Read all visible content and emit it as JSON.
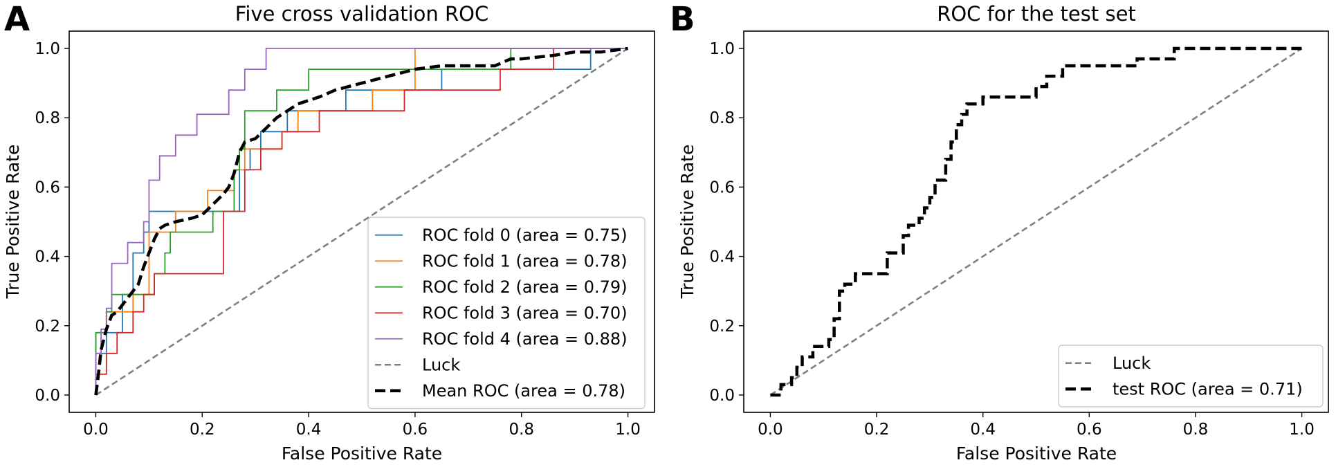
{
  "figure": {
    "panels": [
      {
        "letter": "A"
      },
      {
        "letter": "B"
      }
    ]
  },
  "chart_data": [
    {
      "type": "line",
      "title": "Five cross validation ROC",
      "xlabel": "False Positive Rate",
      "ylabel": "True Positive Rate",
      "xlim": [
        -0.05,
        1.05
      ],
      "ylim": [
        -0.05,
        1.05
      ],
      "xticks": [
        "0.0",
        "0.2",
        "0.4",
        "0.6",
        "0.8",
        "1.0"
      ],
      "yticks": [
        "0.0",
        "0.2",
        "0.4",
        "0.6",
        "0.8",
        "1.0"
      ],
      "grid": false,
      "legend_position": "lower-right",
      "series": [
        {
          "name": "ROC fold 0 (area = 0.75)",
          "color": "#1f77b4",
          "style": "step",
          "x": [
            0,
            0,
            0.02,
            0.02,
            0.05,
            0.05,
            0.07,
            0.07,
            0.09,
            0.09,
            0.1,
            0.1,
            0.27,
            0.27,
            0.29,
            0.29,
            0.31,
            0.31,
            0.36,
            0.36,
            0.47,
            0.47,
            0.65,
            0.65,
            0.93,
            0.93,
            1.0
          ],
          "y": [
            0,
            0.12,
            0.12,
            0.18,
            0.18,
            0.29,
            0.29,
            0.41,
            0.41,
            0.47,
            0.47,
            0.53,
            0.53,
            0.65,
            0.65,
            0.71,
            0.71,
            0.76,
            0.76,
            0.82,
            0.82,
            0.88,
            0.88,
            0.94,
            0.94,
            1.0,
            1.0
          ]
        },
        {
          "name": "ROC fold 1 (area = 0.78)",
          "color": "#ff7f0e",
          "style": "step",
          "x": [
            0,
            0,
            0.02,
            0.02,
            0.07,
            0.07,
            0.1,
            0.1,
            0.15,
            0.15,
            0.21,
            0.21,
            0.26,
            0.26,
            0.28,
            0.28,
            0.35,
            0.35,
            0.38,
            0.38,
            0.52,
            0.52,
            0.6,
            0.6,
            1.0
          ],
          "y": [
            0,
            0.18,
            0.18,
            0.24,
            0.24,
            0.29,
            0.29,
            0.47,
            0.47,
            0.53,
            0.53,
            0.59,
            0.59,
            0.65,
            0.65,
            0.71,
            0.71,
            0.76,
            0.76,
            0.82,
            0.82,
            0.88,
            0.88,
            1.0,
            1.0
          ]
        },
        {
          "name": "ROC fold 2 (area = 0.79)",
          "color": "#2ca02c",
          "style": "step",
          "x": [
            0,
            0,
            0.02,
            0.02,
            0.03,
            0.03,
            0.11,
            0.11,
            0.13,
            0.13,
            0.14,
            0.14,
            0.22,
            0.22,
            0.26,
            0.26,
            0.27,
            0.27,
            0.28,
            0.28,
            0.34,
            0.34,
            0.4,
            0.4,
            0.44,
            0.44,
            0.78,
            0.78,
            1.0
          ],
          "y": [
            0,
            0.18,
            0.18,
            0.24,
            0.24,
            0.29,
            0.29,
            0.35,
            0.35,
            0.41,
            0.41,
            0.47,
            0.47,
            0.53,
            0.53,
            0.65,
            0.65,
            0.71,
            0.71,
            0.82,
            0.82,
            0.88,
            0.88,
            0.94,
            0.94,
            0.94,
            0.94,
            1.0,
            1.0
          ]
        },
        {
          "name": "ROC fold 3 (area = 0.70)",
          "color": "#d62728",
          "style": "step",
          "x": [
            0,
            0,
            0.02,
            0.02,
            0.04,
            0.04,
            0.07,
            0.07,
            0.09,
            0.09,
            0.11,
            0.11,
            0.24,
            0.24,
            0.28,
            0.28,
            0.31,
            0.31,
            0.35,
            0.35,
            0.42,
            0.42,
            0.58,
            0.58,
            0.76,
            0.76,
            0.86,
            0.86,
            1.0
          ],
          "y": [
            0,
            0.06,
            0.06,
            0.12,
            0.12,
            0.18,
            0.18,
            0.24,
            0.24,
            0.29,
            0.29,
            0.35,
            0.35,
            0.53,
            0.53,
            0.65,
            0.65,
            0.71,
            0.71,
            0.76,
            0.76,
            0.82,
            0.82,
            0.88,
            0.88,
            0.94,
            0.94,
            1.0,
            1.0
          ]
        },
        {
          "name": "ROC fold 4 (area = 0.88)",
          "color": "#9467bd",
          "style": "step",
          "x": [
            0,
            0,
            0.01,
            0.01,
            0.02,
            0.02,
            0.03,
            0.03,
            0.06,
            0.06,
            0.09,
            0.09,
            0.1,
            0.1,
            0.12,
            0.12,
            0.15,
            0.15,
            0.19,
            0.19,
            0.24,
            0.24,
            0.25,
            0.25,
            0.26,
            0.26,
            0.28,
            0.28,
            0.3,
            0.3,
            0.32,
            0.32,
            0.34,
            0.34,
            1.0
          ],
          "y": [
            0,
            0.12,
            0.12,
            0.19,
            0.19,
            0.25,
            0.25,
            0.38,
            0.38,
            0.44,
            0.44,
            0.5,
            0.5,
            0.62,
            0.62,
            0.69,
            0.69,
            0.75,
            0.75,
            0.81,
            0.81,
            0.81,
            0.81,
            0.88,
            0.88,
            0.88,
            0.88,
            0.94,
            0.94,
            0.94,
            0.94,
            1.0,
            1.0,
            1.0,
            1.0
          ]
        },
        {
          "name": "Luck",
          "color": "#808080",
          "style": "dashed",
          "x": [
            0,
            1
          ],
          "y": [
            0,
            1
          ]
        },
        {
          "name": "Mean ROC (area = 0.78)",
          "color": "#000000",
          "style": "dashed-thick",
          "x": [
            0,
            0.005,
            0.01,
            0.02,
            0.03,
            0.04,
            0.05,
            0.06,
            0.07,
            0.08,
            0.09,
            0.1,
            0.11,
            0.12,
            0.13,
            0.15,
            0.18,
            0.2,
            0.22,
            0.24,
            0.25,
            0.26,
            0.27,
            0.28,
            0.3,
            0.32,
            0.34,
            0.36,
            0.38,
            0.42,
            0.45,
            0.5,
            0.55,
            0.6,
            0.65,
            0.7,
            0.75,
            0.78,
            0.8,
            0.86,
            0.9,
            0.95,
            1.0
          ],
          "y": [
            0,
            0.06,
            0.13,
            0.19,
            0.23,
            0.24,
            0.26,
            0.28,
            0.3,
            0.32,
            0.37,
            0.41,
            0.45,
            0.48,
            0.49,
            0.5,
            0.51,
            0.52,
            0.55,
            0.58,
            0.6,
            0.64,
            0.7,
            0.73,
            0.74,
            0.77,
            0.8,
            0.82,
            0.84,
            0.86,
            0.88,
            0.9,
            0.92,
            0.94,
            0.95,
            0.95,
            0.95,
            0.97,
            0.97,
            0.98,
            0.99,
            0.99,
            1.0
          ]
        }
      ]
    },
    {
      "type": "line",
      "title": "ROC for the test set",
      "xlabel": "False Positive Rate",
      "ylabel": "True Positive Rate",
      "xlim": [
        -0.05,
        1.05
      ],
      "ylim": [
        -0.05,
        1.05
      ],
      "xticks": [
        "0.0",
        "0.2",
        "0.4",
        "0.6",
        "0.8",
        "1.0"
      ],
      "yticks": [
        "0.0",
        "0.2",
        "0.4",
        "0.6",
        "0.8",
        "1.0"
      ],
      "grid": false,
      "legend_position": "lower-right",
      "series": [
        {
          "name": "Luck",
          "color": "#808080",
          "style": "dashed",
          "x": [
            0,
            1
          ],
          "y": [
            0,
            1
          ]
        },
        {
          "name": "test ROC (area = 0.71)",
          "color": "#000000",
          "style": "dashed-thick",
          "x": [
            0,
            0.02,
            0.02,
            0.04,
            0.04,
            0.05,
            0.05,
            0.06,
            0.06,
            0.08,
            0.08,
            0.11,
            0.11,
            0.12,
            0.12,
            0.13,
            0.13,
            0.14,
            0.14,
            0.16,
            0.16,
            0.22,
            0.22,
            0.25,
            0.25,
            0.26,
            0.26,
            0.28,
            0.28,
            0.29,
            0.29,
            0.3,
            0.3,
            0.31,
            0.31,
            0.33,
            0.33,
            0.34,
            0.34,
            0.35,
            0.35,
            0.36,
            0.36,
            0.37,
            0.37,
            0.4,
            0.4,
            0.5,
            0.5,
            0.52,
            0.52,
            0.55,
            0.55,
            0.69,
            0.69,
            0.76,
            0.76,
            0.87,
            0.87,
            1.0
          ],
          "y": [
            0,
            0,
            0.03,
            0.03,
            0.05,
            0.05,
            0.08,
            0.08,
            0.11,
            0.11,
            0.14,
            0.14,
            0.16,
            0.16,
            0.22,
            0.22,
            0.3,
            0.3,
            0.32,
            0.32,
            0.35,
            0.35,
            0.41,
            0.41,
            0.46,
            0.46,
            0.49,
            0.49,
            0.51,
            0.51,
            0.54,
            0.54,
            0.57,
            0.57,
            0.62,
            0.62,
            0.68,
            0.68,
            0.73,
            0.73,
            0.78,
            0.78,
            0.81,
            0.81,
            0.84,
            0.84,
            0.86,
            0.86,
            0.89,
            0.89,
            0.92,
            0.92,
            0.95,
            0.95,
            0.97,
            0.97,
            1.0,
            1.0,
            1.0,
            1.0
          ]
        }
      ]
    }
  ]
}
